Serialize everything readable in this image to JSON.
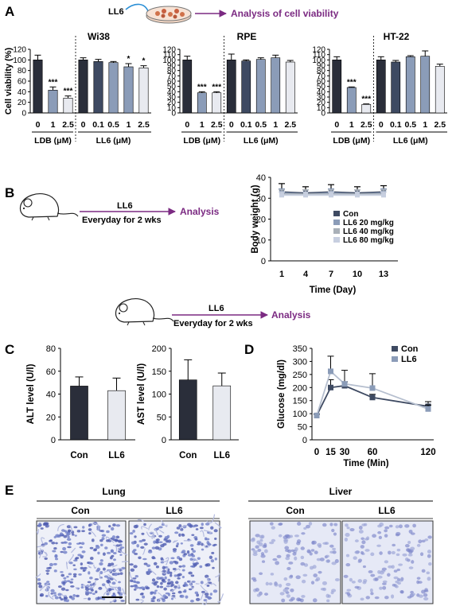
{
  "panel_labels": {
    "a": "A",
    "b": "B",
    "c": "C",
    "d": "D",
    "e": "E"
  },
  "panel_a_header": {
    "treatment": "LL6",
    "arrow_text": "Analysis of cell viability"
  },
  "panel_b_header": {
    "treatment": "LL6",
    "schedule": "Everyday for 2 wks",
    "outcome": "Analysis"
  },
  "panel_c_header": {
    "treatment": "LL6",
    "schedule": "Everyday for 2 wks",
    "outcome": "Analysis"
  },
  "group_labels": {
    "ldb": "LDB (μM)",
    "ll6": "LL6 (μM)"
  },
  "panel_e": {
    "lung": "Lung",
    "liver": "Liver",
    "images": [
      {
        "label": "Con"
      },
      {
        "label": "LL6"
      },
      {
        "label": "Con"
      },
      {
        "label": "LL6"
      }
    ]
  },
  "colors": {
    "dark": "#2a2e3a",
    "steel": "#8b9cb8",
    "light": "#e8eaf0",
    "slate": "#3e4a62",
    "purple": "#7b2a82",
    "grid": "#000000"
  },
  "chart_data": [
    {
      "type": "bar",
      "title": "Wi38",
      "ylabel": "Cell viability (%)",
      "ylim": [
        0,
        120
      ],
      "yticks": [
        0,
        20,
        40,
        60,
        80,
        100,
        120
      ],
      "categories": [
        "0",
        "1",
        "2.5",
        "0",
        "0.1",
        "0.5",
        "1",
        "2.5"
      ],
      "values": [
        100,
        43,
        28,
        100,
        97,
        95,
        87,
        85
      ],
      "errors": [
        9,
        6,
        4,
        4,
        4,
        2,
        6,
        4
      ],
      "annotations": [
        "",
        "***",
        "***",
        "",
        "",
        "",
        "*",
        "*"
      ],
      "groups": [
        "LDB (μM)",
        "LL6 (μM)"
      ]
    },
    {
      "type": "bar",
      "title": "RPE",
      "ylabel": "",
      "ylim": [
        0,
        120
      ],
      "yticks": [
        0,
        10,
        20,
        30,
        40,
        50,
        60,
        70,
        80,
        90,
        100,
        110,
        120
      ],
      "categories": [
        "0",
        "1",
        "2.5",
        "0",
        "0.1",
        "0.5",
        "1",
        "2.5"
      ],
      "values": [
        100,
        38,
        38,
        100,
        98,
        101,
        104,
        96
      ],
      "errors": [
        7,
        2,
        2,
        11,
        2,
        3,
        5,
        3
      ],
      "annotations": [
        "",
        "***",
        "***",
        "",
        "",
        "",
        "",
        ""
      ],
      "groups": [
        "LDB (μM)",
        "LL6 (μM)"
      ]
    },
    {
      "type": "bar",
      "title": "HT-22",
      "ylabel": "",
      "ylim": [
        0,
        120
      ],
      "yticks": [
        0,
        10,
        20,
        30,
        40,
        50,
        60,
        70,
        80,
        90,
        100,
        110,
        120
      ],
      "categories": [
        "0",
        "1",
        "2.5",
        "0",
        "0.1",
        "0.5",
        "1",
        "2.5"
      ],
      "values": [
        100,
        48,
        16,
        100,
        96,
        106,
        107,
        88
      ],
      "errors": [
        6,
        1,
        1,
        6,
        3,
        2,
        10,
        4
      ],
      "annotations": [
        "",
        "***",
        "***",
        "",
        "",
        "",
        "",
        ""
      ],
      "groups": [
        "LDB (μM)",
        "LL6 (μM)"
      ]
    },
    {
      "type": "line",
      "title": "",
      "xlabel": "Time (Day)",
      "ylabel": "Body weight (g)",
      "x": [
        1,
        4,
        7,
        10,
        13
      ],
      "ylim": [
        0,
        40
      ],
      "yticks": [
        0,
        10,
        20,
        30,
        40
      ],
      "series": [
        {
          "name": "Con",
          "values": [
            33,
            32.5,
            33,
            32.5,
            33
          ],
          "errors": [
            4,
            3,
            3.5,
            3,
            3
          ]
        },
        {
          "name": "LL6 20 mg/kg",
          "values": [
            32.5,
            32,
            32.5,
            32,
            32.5
          ],
          "errors": [
            2,
            2,
            2,
            2,
            2
          ]
        },
        {
          "name": "LL6 40 mg/kg",
          "values": [
            32,
            32,
            32,
            32,
            32
          ],
          "errors": [
            2,
            2,
            2,
            2,
            2
          ]
        },
        {
          "name": "LL6 80 mg/kg",
          "values": [
            31.5,
            31.5,
            31.5,
            31.5,
            31.5
          ],
          "errors": [
            1.5,
            1.5,
            1.5,
            1.5,
            1.5
          ]
        }
      ]
    },
    {
      "type": "bar",
      "title": "",
      "ylabel": "ALT level (U/l)",
      "ylim": [
        0,
        80
      ],
      "yticks": [
        0,
        20,
        40,
        60,
        80
      ],
      "categories": [
        "Con",
        "LL6"
      ],
      "values": [
        47,
        43
      ],
      "errors": [
        8,
        11
      ]
    },
    {
      "type": "bar",
      "title": "",
      "ylabel": "AST level (U/l)",
      "ylim": [
        0,
        200
      ],
      "yticks": [
        0,
        50,
        100,
        150,
        200
      ],
      "categories": [
        "Con",
        "LL6"
      ],
      "values": [
        131,
        118
      ],
      "errors": [
        44,
        28
      ]
    },
    {
      "type": "line",
      "title": "",
      "xlabel": "Time (Min)",
      "ylabel": "Glucose (mg/dl)",
      "x": [
        0,
        15,
        30,
        60,
        120
      ],
      "ylim": [
        0,
        350
      ],
      "yticks": [
        0,
        50,
        100,
        150,
        200,
        250,
        300,
        350
      ],
      "series": [
        {
          "name": "Con",
          "values": [
            93,
            200,
            207,
            162,
            128
          ],
          "errors": [
            5,
            30,
            15,
            12,
            18
          ]
        },
        {
          "name": "LL6",
          "values": [
            93,
            262,
            214,
            198,
            118
          ],
          "errors": [
            5,
            58,
            52,
            55,
            15
          ]
        }
      ]
    }
  ]
}
